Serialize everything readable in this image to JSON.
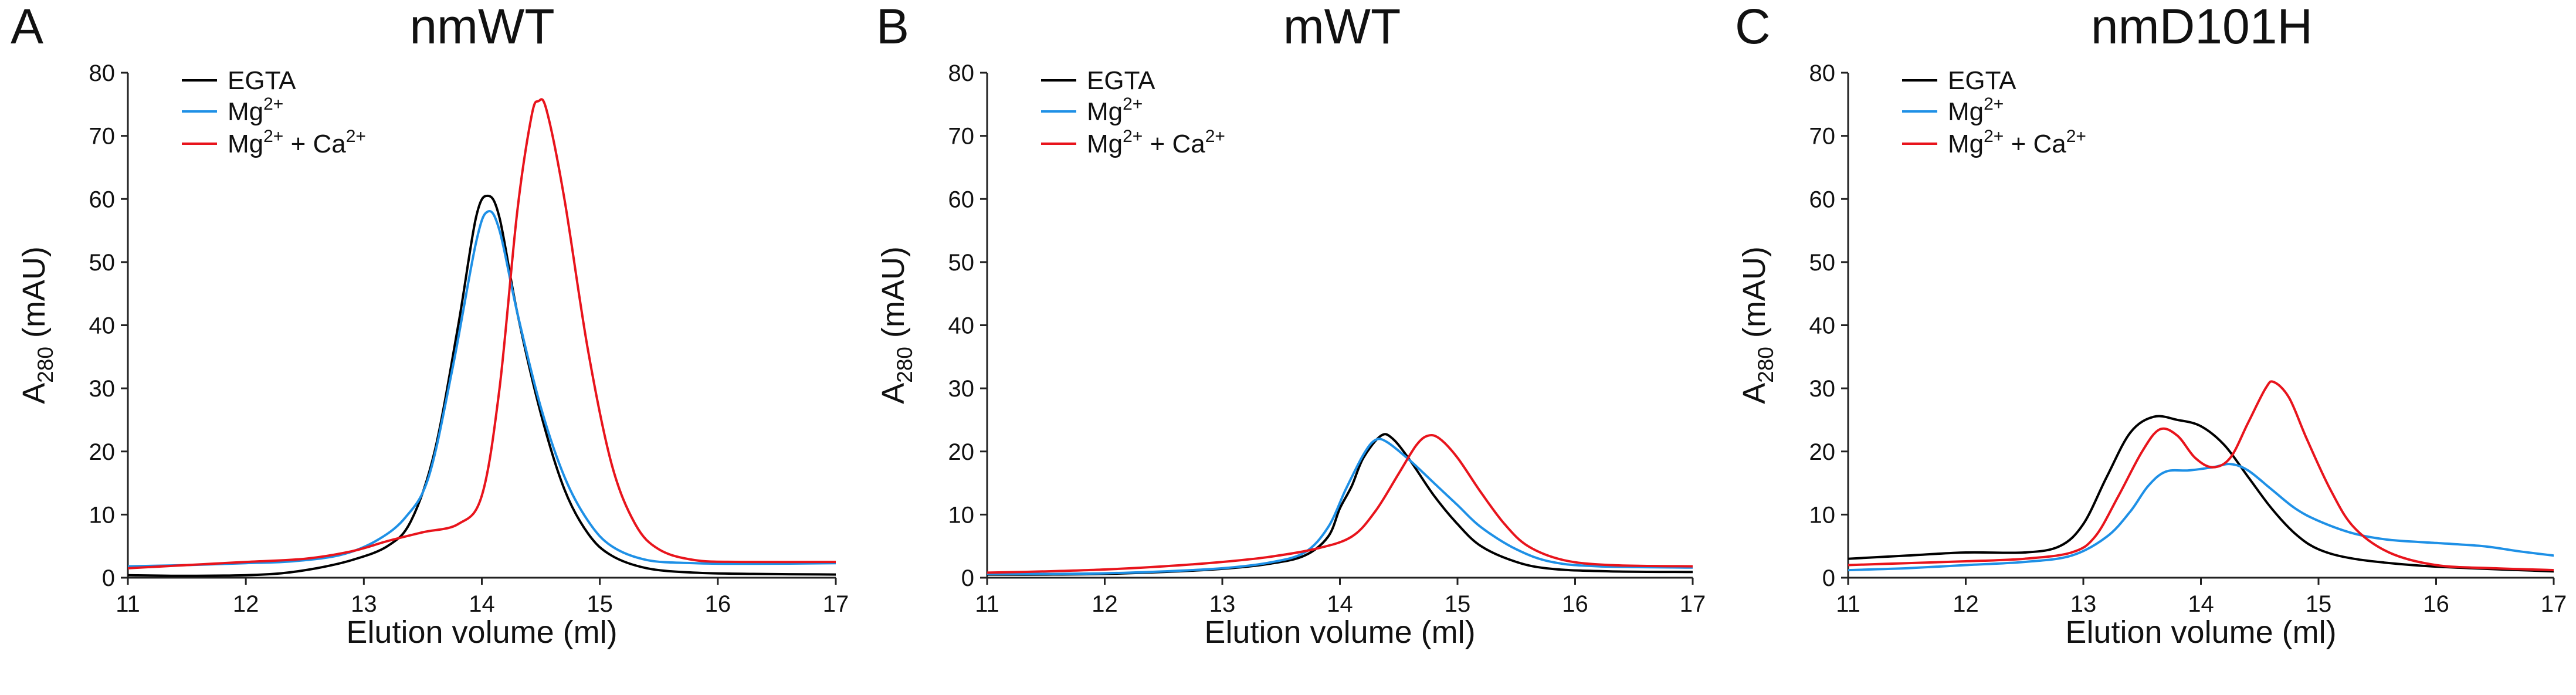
{
  "colors": {
    "egta": "#000000",
    "mg": "#1e90e6",
    "mgca": "#e8141c",
    "axis": "#222222"
  },
  "legend_labels": {
    "egta": "EGTA",
    "mg_base": "Mg",
    "mg_sup": "2+",
    "mgca_base": "Mg",
    "mgca_sup": "2+",
    "mgca_mid": " + Ca",
    "mgca_sup2": "2+"
  },
  "chart_data": [
    {
      "panel": "A",
      "type": "line",
      "title": "nmWT",
      "xlabel": "Elution volume (ml)",
      "ylabel": "A280 (mAU)",
      "ylabel_main": "A",
      "ylabel_sub": "280",
      "ylabel_rest": " (mAU)",
      "xlim": [
        11,
        17
      ],
      "ylim": [
        0,
        80
      ],
      "xticks": [
        11,
        12,
        13,
        14,
        15,
        16,
        17
      ],
      "yticks": [
        0,
        10,
        20,
        30,
        40,
        50,
        60,
        70,
        80
      ],
      "legend_position": "top-left",
      "series": [
        {
          "name": "EGTA",
          "color_key": "egta",
          "points": [
            [
              11.0,
              0.4
            ],
            [
              11.5,
              0.3
            ],
            [
              12.0,
              0.4
            ],
            [
              12.3,
              0.7
            ],
            [
              12.6,
              1.5
            ],
            [
              12.9,
              2.8
            ],
            [
              13.2,
              5.0
            ],
            [
              13.4,
              9.0
            ],
            [
              13.6,
              20.0
            ],
            [
              13.8,
              40.0
            ],
            [
              13.95,
              57.0
            ],
            [
              14.05,
              60.5
            ],
            [
              14.15,
              57.0
            ],
            [
              14.3,
              42.0
            ],
            [
              14.5,
              26.0
            ],
            [
              14.7,
              14.0
            ],
            [
              14.9,
              7.0
            ],
            [
              15.1,
              3.5
            ],
            [
              15.4,
              1.5
            ],
            [
              15.8,
              0.8
            ],
            [
              16.3,
              0.6
            ],
            [
              17.0,
              0.5
            ]
          ]
        },
        {
          "name": "Mg2+",
          "color_key": "mg",
          "points": [
            [
              11.0,
              1.8
            ],
            [
              11.5,
              2.0
            ],
            [
              12.0,
              2.3
            ],
            [
              12.4,
              2.6
            ],
            [
              12.8,
              3.6
            ],
            [
              13.1,
              5.8
            ],
            [
              13.35,
              9.5
            ],
            [
              13.55,
              16.0
            ],
            [
              13.75,
              33.0
            ],
            [
              13.95,
              53.0
            ],
            [
              14.05,
              58.0
            ],
            [
              14.15,
              55.0
            ],
            [
              14.3,
              42.0
            ],
            [
              14.5,
              27.0
            ],
            [
              14.7,
              16.0
            ],
            [
              14.9,
              9.0
            ],
            [
              15.1,
              5.0
            ],
            [
              15.4,
              2.8
            ],
            [
              15.8,
              2.3
            ],
            [
              16.3,
              2.2
            ],
            [
              17.0,
              2.3
            ]
          ]
        },
        {
          "name": "Mg2+ + Ca2+",
          "color_key": "mgca",
          "points": [
            [
              11.0,
              1.5
            ],
            [
              11.5,
              2.0
            ],
            [
              12.0,
              2.5
            ],
            [
              12.5,
              3.0
            ],
            [
              12.9,
              4.2
            ],
            [
              13.2,
              5.8
            ],
            [
              13.5,
              7.2
            ],
            [
              13.8,
              8.5
            ],
            [
              14.0,
              13.0
            ],
            [
              14.15,
              30.0
            ],
            [
              14.3,
              58.0
            ],
            [
              14.42,
              73.0
            ],
            [
              14.48,
              75.5
            ],
            [
              14.55,
              74.0
            ],
            [
              14.7,
              60.0
            ],
            [
              14.9,
              36.0
            ],
            [
              15.1,
              18.0
            ],
            [
              15.3,
              8.5
            ],
            [
              15.5,
              4.5
            ],
            [
              15.8,
              2.8
            ],
            [
              16.2,
              2.5
            ],
            [
              17.0,
              2.5
            ]
          ]
        }
      ]
    },
    {
      "panel": "B",
      "type": "line",
      "title": "mWT",
      "xlabel": "Elution volume (ml)",
      "ylabel": "A280 (mAU)",
      "ylabel_main": "A",
      "ylabel_sub": "280",
      "ylabel_rest": " (mAU)",
      "xlim": [
        11,
        17
      ],
      "ylim": [
        0,
        80
      ],
      "xticks": [
        11,
        12,
        13,
        14,
        15,
        16,
        17
      ],
      "yticks": [
        0,
        10,
        20,
        30,
        40,
        50,
        60,
        70,
        80
      ],
      "legend_position": "top-left",
      "series": [
        {
          "name": "EGTA",
          "color_key": "egta",
          "points": [
            [
              11.0,
              0.5
            ],
            [
              11.5,
              0.5
            ],
            [
              12.0,
              0.6
            ],
            [
              12.5,
              0.9
            ],
            [
              13.0,
              1.4
            ],
            [
              13.4,
              2.2
            ],
            [
              13.7,
              3.5
            ],
            [
              13.9,
              6.5
            ],
            [
              14.0,
              11.0
            ],
            [
              14.1,
              14.5
            ],
            [
              14.2,
              19.0
            ],
            [
              14.35,
              22.5
            ],
            [
              14.45,
              22.0
            ],
            [
              14.6,
              18.5
            ],
            [
              14.8,
              13.0
            ],
            [
              15.0,
              8.5
            ],
            [
              15.2,
              5.0
            ],
            [
              15.5,
              2.5
            ],
            [
              15.8,
              1.4
            ],
            [
              16.3,
              1.0
            ],
            [
              17.0,
              0.9
            ]
          ]
        },
        {
          "name": "Mg2+",
          "color_key": "mg",
          "points": [
            [
              11.0,
              0.6
            ],
            [
              11.5,
              0.6
            ],
            [
              12.0,
              0.7
            ],
            [
              12.5,
              1.0
            ],
            [
              13.0,
              1.5
            ],
            [
              13.4,
              2.4
            ],
            [
              13.7,
              4.0
            ],
            [
              13.9,
              8.0
            ],
            [
              14.05,
              14.0
            ],
            [
              14.2,
              19.5
            ],
            [
              14.3,
              21.8
            ],
            [
              14.4,
              21.5
            ],
            [
              14.6,
              18.5
            ],
            [
              14.8,
              15.0
            ],
            [
              15.0,
              11.5
            ],
            [
              15.2,
              8.0
            ],
            [
              15.5,
              4.5
            ],
            [
              15.8,
              2.5
            ],
            [
              16.2,
              1.8
            ],
            [
              17.0,
              1.6
            ]
          ]
        },
        {
          "name": "Mg2+ + Ca2+",
          "color_key": "mgca",
          "points": [
            [
              11.0,
              0.8
            ],
            [
              11.5,
              1.0
            ],
            [
              12.0,
              1.3
            ],
            [
              12.5,
              1.8
            ],
            [
              13.0,
              2.5
            ],
            [
              13.4,
              3.3
            ],
            [
              13.8,
              4.6
            ],
            [
              14.1,
              6.5
            ],
            [
              14.3,
              10.5
            ],
            [
              14.5,
              16.5
            ],
            [
              14.65,
              21.0
            ],
            [
              14.75,
              22.5
            ],
            [
              14.85,
              22.0
            ],
            [
              15.0,
              19.0
            ],
            [
              15.2,
              13.5
            ],
            [
              15.4,
              8.5
            ],
            [
              15.6,
              5.0
            ],
            [
              15.9,
              2.8
            ],
            [
              16.3,
              2.0
            ],
            [
              17.0,
              1.8
            ]
          ]
        }
      ]
    },
    {
      "panel": "C",
      "type": "line",
      "title": "nmD101H",
      "xlabel": "Elution volume (ml)",
      "ylabel": "A280 (mAU)",
      "ylabel_main": "A",
      "ylabel_sub": "280",
      "ylabel_rest": " (mAU)",
      "xlim": [
        11,
        17
      ],
      "ylim": [
        0,
        80
      ],
      "xticks": [
        11,
        12,
        13,
        14,
        15,
        16,
        17
      ],
      "yticks": [
        0,
        10,
        20,
        30,
        40,
        50,
        60,
        70,
        80
      ],
      "legend_position": "top-left",
      "series": [
        {
          "name": "EGTA",
          "color_key": "egta",
          "points": [
            [
              11.0,
              3.0
            ],
            [
              11.5,
              3.5
            ],
            [
              12.0,
              4.0
            ],
            [
              12.5,
              4.0
            ],
            [
              12.8,
              5.0
            ],
            [
              13.0,
              8.5
            ],
            [
              13.2,
              16.0
            ],
            [
              13.4,
              23.0
            ],
            [
              13.6,
              25.5
            ],
            [
              13.8,
              25.0
            ],
            [
              14.0,
              24.0
            ],
            [
              14.2,
              21.0
            ],
            [
              14.4,
              16.0
            ],
            [
              14.6,
              11.0
            ],
            [
              14.8,
              7.0
            ],
            [
              15.0,
              4.5
            ],
            [
              15.3,
              3.0
            ],
            [
              15.8,
              2.0
            ],
            [
              16.3,
              1.5
            ],
            [
              17.0,
              1.0
            ]
          ]
        },
        {
          "name": "Mg2+",
          "color_key": "mg",
          "points": [
            [
              11.0,
              1.2
            ],
            [
              11.5,
              1.5
            ],
            [
              12.0,
              2.0
            ],
            [
              12.5,
              2.5
            ],
            [
              12.9,
              3.5
            ],
            [
              13.2,
              6.5
            ],
            [
              13.4,
              10.5
            ],
            [
              13.55,
              14.5
            ],
            [
              13.7,
              16.8
            ],
            [
              13.9,
              17.0
            ],
            [
              14.1,
              17.5
            ],
            [
              14.25,
              18.0
            ],
            [
              14.4,
              17.0
            ],
            [
              14.6,
              14.0
            ],
            [
              14.8,
              11.0
            ],
            [
              15.0,
              9.0
            ],
            [
              15.3,
              7.0
            ],
            [
              15.6,
              6.0
            ],
            [
              16.0,
              5.5
            ],
            [
              16.4,
              5.0
            ],
            [
              16.7,
              4.2
            ],
            [
              17.0,
              3.5
            ]
          ]
        },
        {
          "name": "Mg2+ + Ca2+",
          "color_key": "mgca",
          "points": [
            [
              11.0,
              2.0
            ],
            [
              11.5,
              2.3
            ],
            [
              12.0,
              2.6
            ],
            [
              12.5,
              3.0
            ],
            [
              12.9,
              4.0
            ],
            [
              13.1,
              6.5
            ],
            [
              13.3,
              13.0
            ],
            [
              13.5,
              20.0
            ],
            [
              13.65,
              23.5
            ],
            [
              13.8,
              22.5
            ],
            [
              13.95,
              19.0
            ],
            [
              14.1,
              17.5
            ],
            [
              14.25,
              19.0
            ],
            [
              14.4,
              24.5
            ],
            [
              14.55,
              30.0
            ],
            [
              14.62,
              31.0
            ],
            [
              14.75,
              28.5
            ],
            [
              14.9,
              22.0
            ],
            [
              15.1,
              14.0
            ],
            [
              15.3,
              8.0
            ],
            [
              15.6,
              4.0
            ],
            [
              16.0,
              2.0
            ],
            [
              16.5,
              1.5
            ],
            [
              17.0,
              1.2
            ]
          ]
        }
      ]
    }
  ]
}
